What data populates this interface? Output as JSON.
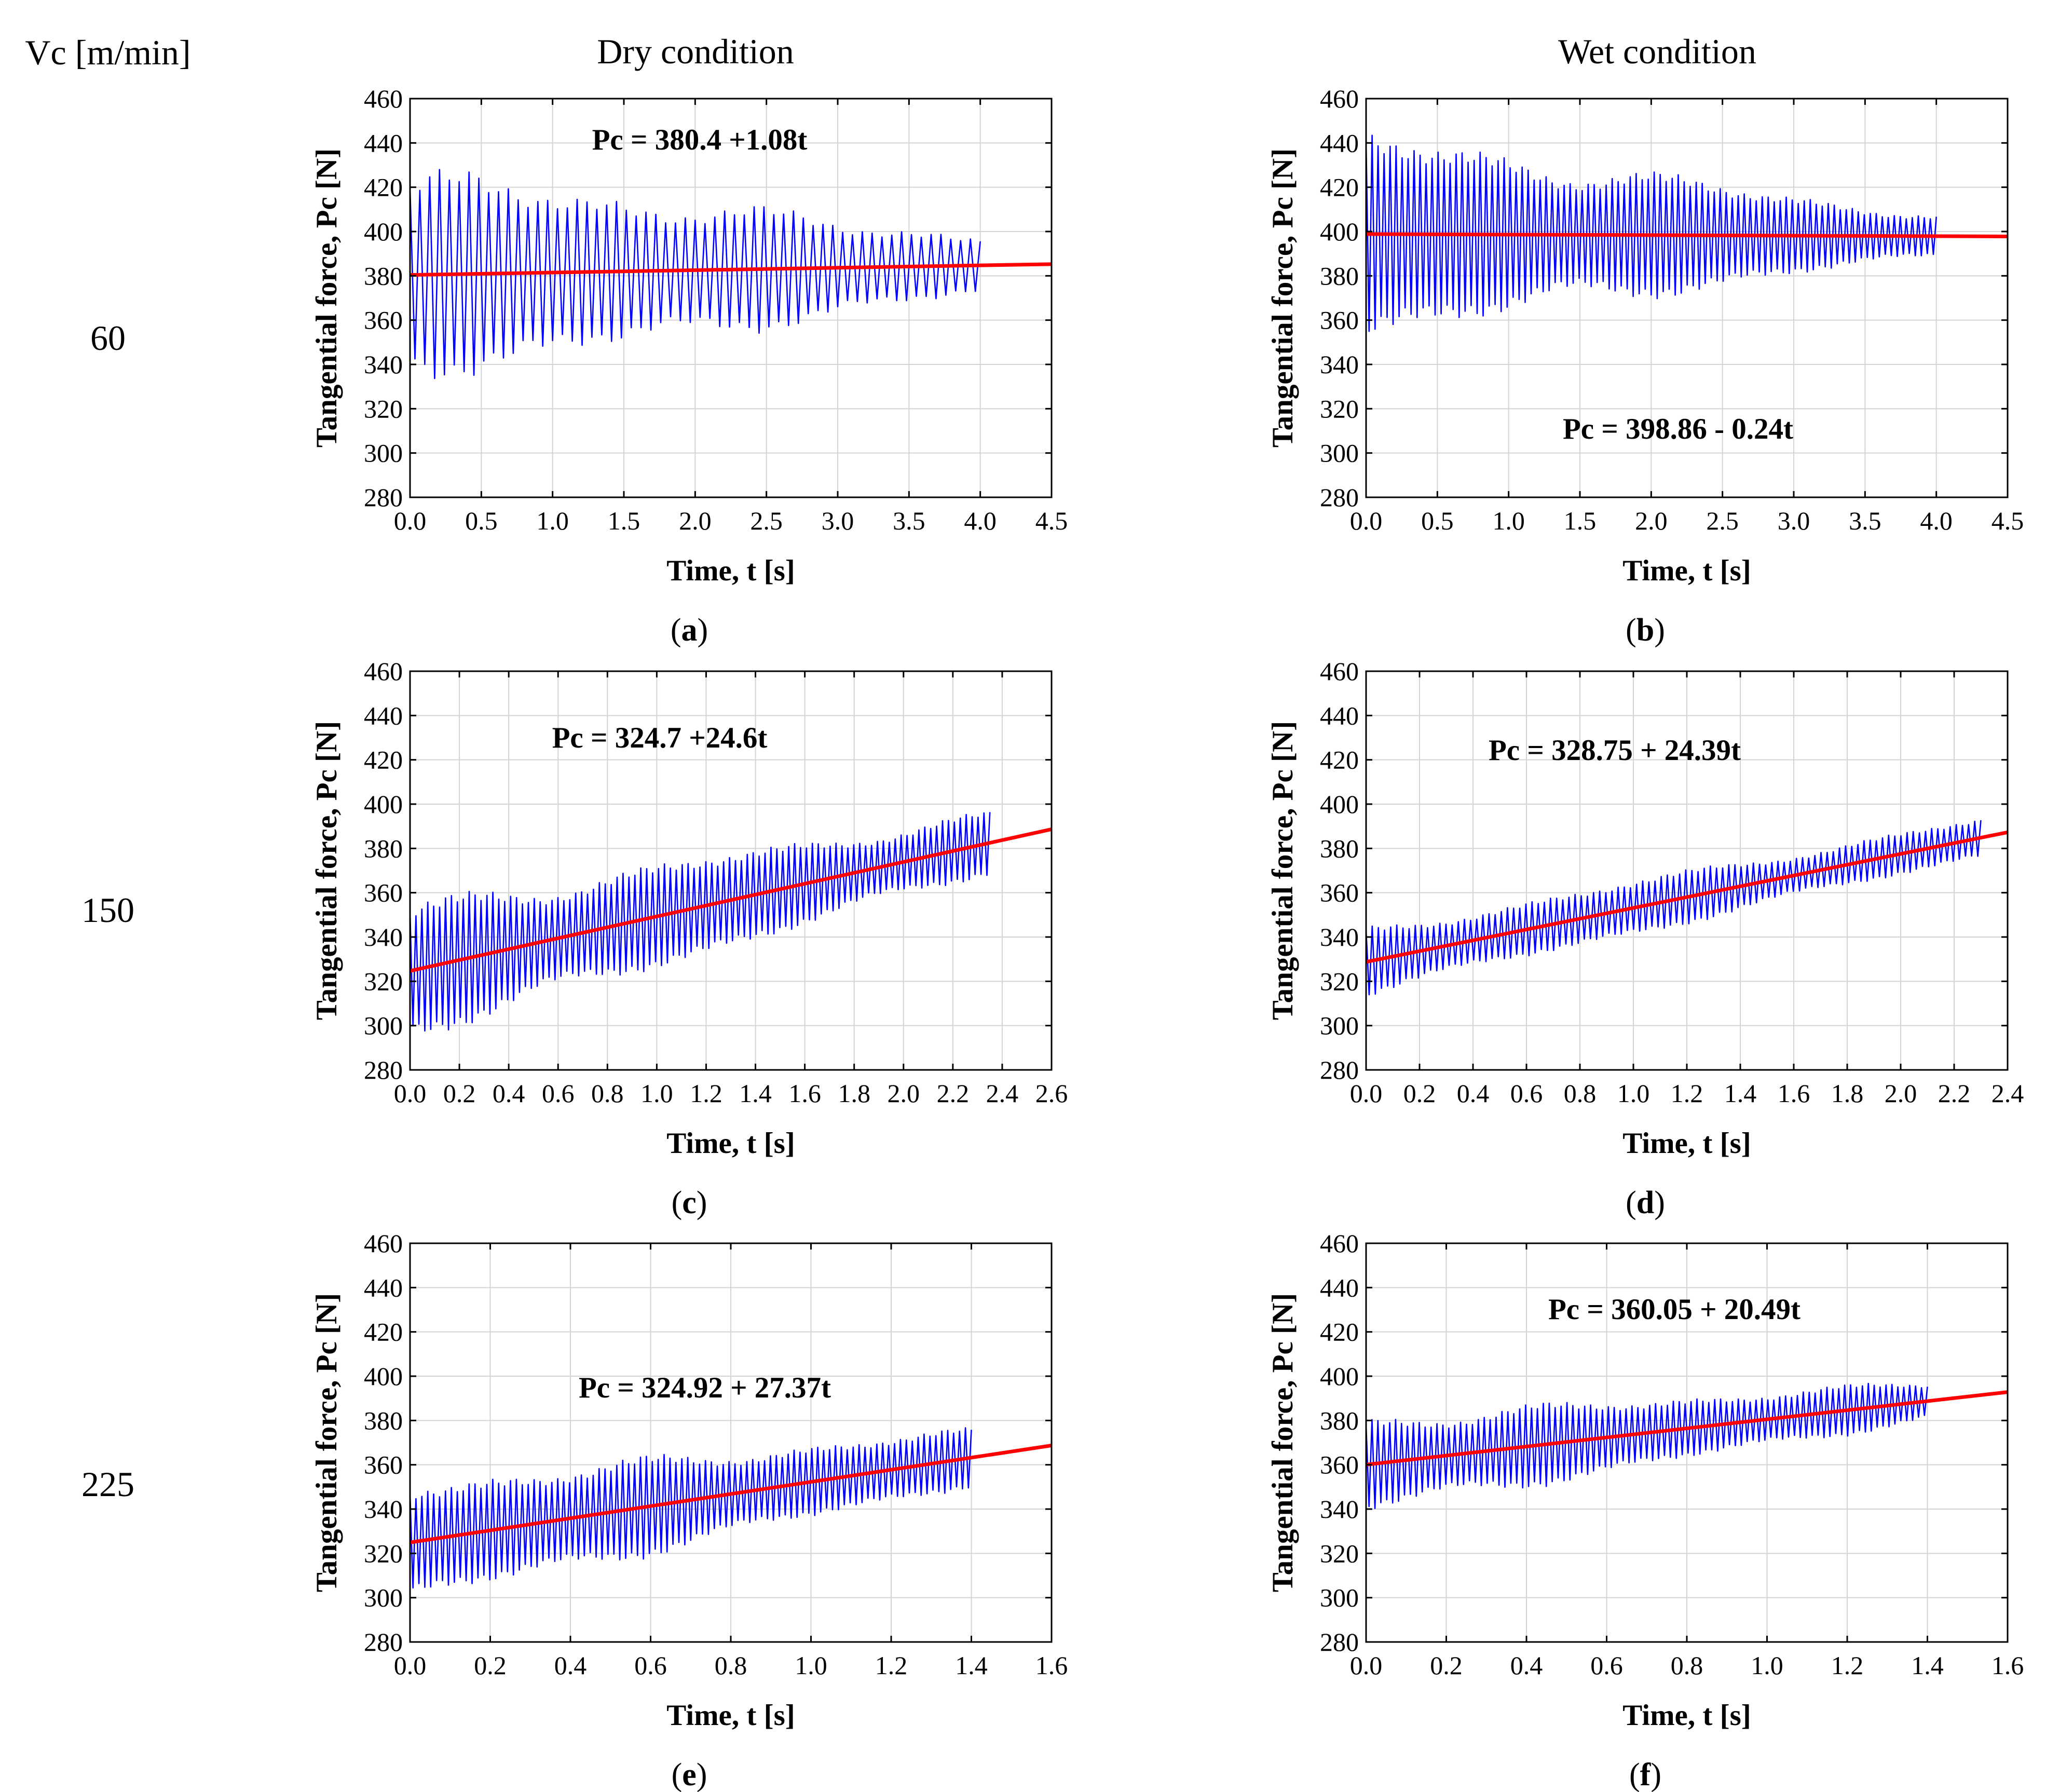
{
  "headers": {
    "speed_label": "Vc [m/min]",
    "dry": "Dry condition",
    "wet": "Wet condition",
    "rows": [
      "60",
      "150",
      "225"
    ]
  },
  "colors": {
    "signal": "#0000ff",
    "fit": "#ff0000"
  },
  "chart_data": [
    {
      "id": "a",
      "caption_letter": "a",
      "type": "line",
      "xlabel": "Time, t [s]",
      "ylabel": "Tangential force, Pc [N]",
      "xlim": [
        0,
        4.5
      ],
      "xticks": [
        "0.0",
        "0.5",
        "1.0",
        "1.5",
        "2.0",
        "2.5",
        "3.0",
        "3.5",
        "4.0",
        "4.5"
      ],
      "ylim": [
        280,
        460
      ],
      "yticks": [
        "280",
        "300",
        "320",
        "340",
        "360",
        "380",
        "400",
        "420",
        "440",
        "460"
      ],
      "equation": "Pc = 380.4 +1.08t",
      "fit": {
        "intercept": 380.4,
        "slope": 1.08,
        "t_end": 4.5
      },
      "signal": {
        "t_end": 4.0,
        "amp_start": 48,
        "amp_end": 14,
        "cycles": 58
      }
    },
    {
      "id": "b",
      "caption_letter": "b",
      "type": "line",
      "xlabel": "Time, t [s]",
      "ylabel": "Tangential force, Pc [N]",
      "xlim": [
        0,
        4.5
      ],
      "xticks": [
        "0.0",
        "0.5",
        "1.0",
        "1.5",
        "2.0",
        "2.5",
        "3.0",
        "3.5",
        "4.0",
        "4.5"
      ],
      "ylim": [
        280,
        460
      ],
      "yticks": [
        "280",
        "300",
        "320",
        "340",
        "360",
        "380",
        "400",
        "420",
        "440",
        "460"
      ],
      "equation": "Pc = 398.86 - 0.24t",
      "fit": {
        "intercept": 398.86,
        "slope": -0.24,
        "t_end": 4.5
      },
      "signal": {
        "t_end": 4.0,
        "amp_start": 46,
        "amp_end": 10,
        "cycles": 95
      }
    },
    {
      "id": "c",
      "caption_letter": "c",
      "type": "line",
      "xlabel": "Time, t [s]",
      "ylabel": "Tangential force, Pc [N]",
      "xlim": [
        0,
        2.6
      ],
      "xticks": [
        "0.0",
        "0.2",
        "0.4",
        "0.6",
        "0.8",
        "1.0",
        "1.2",
        "1.4",
        "1.6",
        "1.8",
        "2.0",
        "2.2",
        "2.4",
        "2.6"
      ],
      "ylim": [
        280,
        460
      ],
      "yticks": [
        "280",
        "300",
        "320",
        "340",
        "360",
        "380",
        "400",
        "420",
        "440",
        "460"
      ],
      "equation": "Pc = 324.7 +24.6t",
      "fit": {
        "intercept": 324.7,
        "slope": 24.6,
        "t_end": 2.6
      },
      "signal": {
        "t_end": 2.35,
        "amp_start": 31,
        "amp_end": 14,
        "cycles": 98
      }
    },
    {
      "id": "d",
      "caption_letter": "d",
      "type": "line",
      "xlabel": "Time, t [s]",
      "ylabel": "Tangential force, Pc [N]",
      "xlim": [
        0,
        2.4
      ],
      "xticks": [
        "0.0",
        "0.2",
        "0.4",
        "0.6",
        "0.8",
        "1.0",
        "1.2",
        "1.4",
        "1.6",
        "1.8",
        "2.0",
        "2.2",
        "2.4"
      ],
      "ylim": [
        280,
        460
      ],
      "yticks": [
        "280",
        "300",
        "320",
        "340",
        "360",
        "380",
        "400",
        "420",
        "440",
        "460"
      ],
      "equation": "Pc = 328.75 + 24.39t",
      "fit": {
        "intercept": 328.75,
        "slope": 24.39,
        "t_end": 2.4
      },
      "signal": {
        "t_end": 2.3,
        "amp_start": 15,
        "amp_end": 9,
        "cycles": 100
      }
    },
    {
      "id": "e",
      "caption_letter": "e",
      "type": "line",
      "xlabel": "Time, t [s]",
      "ylabel": "Tangential force, Pc [N]",
      "xlim": [
        0,
        1.6
      ],
      "xticks": [
        "0.0",
        "0.2",
        "0.4",
        "0.6",
        "0.8",
        "1.0",
        "1.2",
        "1.4",
        "1.6"
      ],
      "ylim": [
        280,
        460
      ],
      "yticks": [
        "280",
        "300",
        "320",
        "340",
        "360",
        "380",
        "400",
        "420",
        "440",
        "460"
      ],
      "equation": "Pc = 324.92 + 27.37t",
      "fit": {
        "intercept": 324.92,
        "slope": 27.37,
        "t_end": 1.6
      },
      "signal": {
        "t_end": 1.4,
        "amp_start": 28,
        "amp_end": 13,
        "cycles": 95
      }
    },
    {
      "id": "f",
      "caption_letter": "f",
      "type": "line",
      "xlabel": "Time, t [s]",
      "ylabel": "Tangential force, Pc [N]",
      "xlim": [
        0,
        1.6
      ],
      "xticks": [
        "0.0",
        "0.2",
        "0.4",
        "0.6",
        "0.8",
        "1.0",
        "1.2",
        "1.4",
        "1.6"
      ],
      "ylim": [
        280,
        460
      ],
      "yticks": [
        "280",
        "300",
        "320",
        "340",
        "360",
        "380",
        "400",
        "420",
        "440",
        "460"
      ],
      "equation": "Pc = 360.05 + 20.49t",
      "fit": {
        "intercept": 360.05,
        "slope": 20.49,
        "t_end": 1.6
      },
      "signal": {
        "t_end": 1.4,
        "amp_start": 22,
        "amp_end": 9,
        "cycles": 95
      }
    }
  ]
}
